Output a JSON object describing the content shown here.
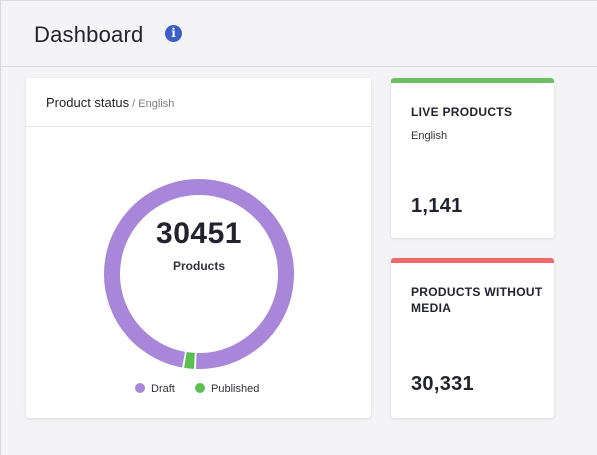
{
  "header": {
    "title": "Dashboard",
    "info_icon": "info-icon",
    "info_glyph": "i"
  },
  "product_status": {
    "title": "Product status",
    "separator": " / ",
    "locale": "English",
    "total": "30451",
    "total_label": "Products",
    "legend": [
      {
        "label": "Draft",
        "color": "#a886d9"
      },
      {
        "label": "Published",
        "color": "#5cbf52"
      }
    ],
    "chart_data": {
      "type": "pie",
      "title": "",
      "categories": [
        "Draft",
        "Published"
      ],
      "values": [
        30331,
        120
      ],
      "colors": [
        "#a886d9",
        "#5cbf52"
      ]
    }
  },
  "live_products": {
    "title": "LIVE PRODUCTS",
    "locale": "English",
    "value": "1,141",
    "accent": "#6dbf63"
  },
  "products_without_media": {
    "title": "PRODUCTS WITHOUT MEDIA",
    "value": "30,331",
    "accent": "#ef6b6b"
  }
}
